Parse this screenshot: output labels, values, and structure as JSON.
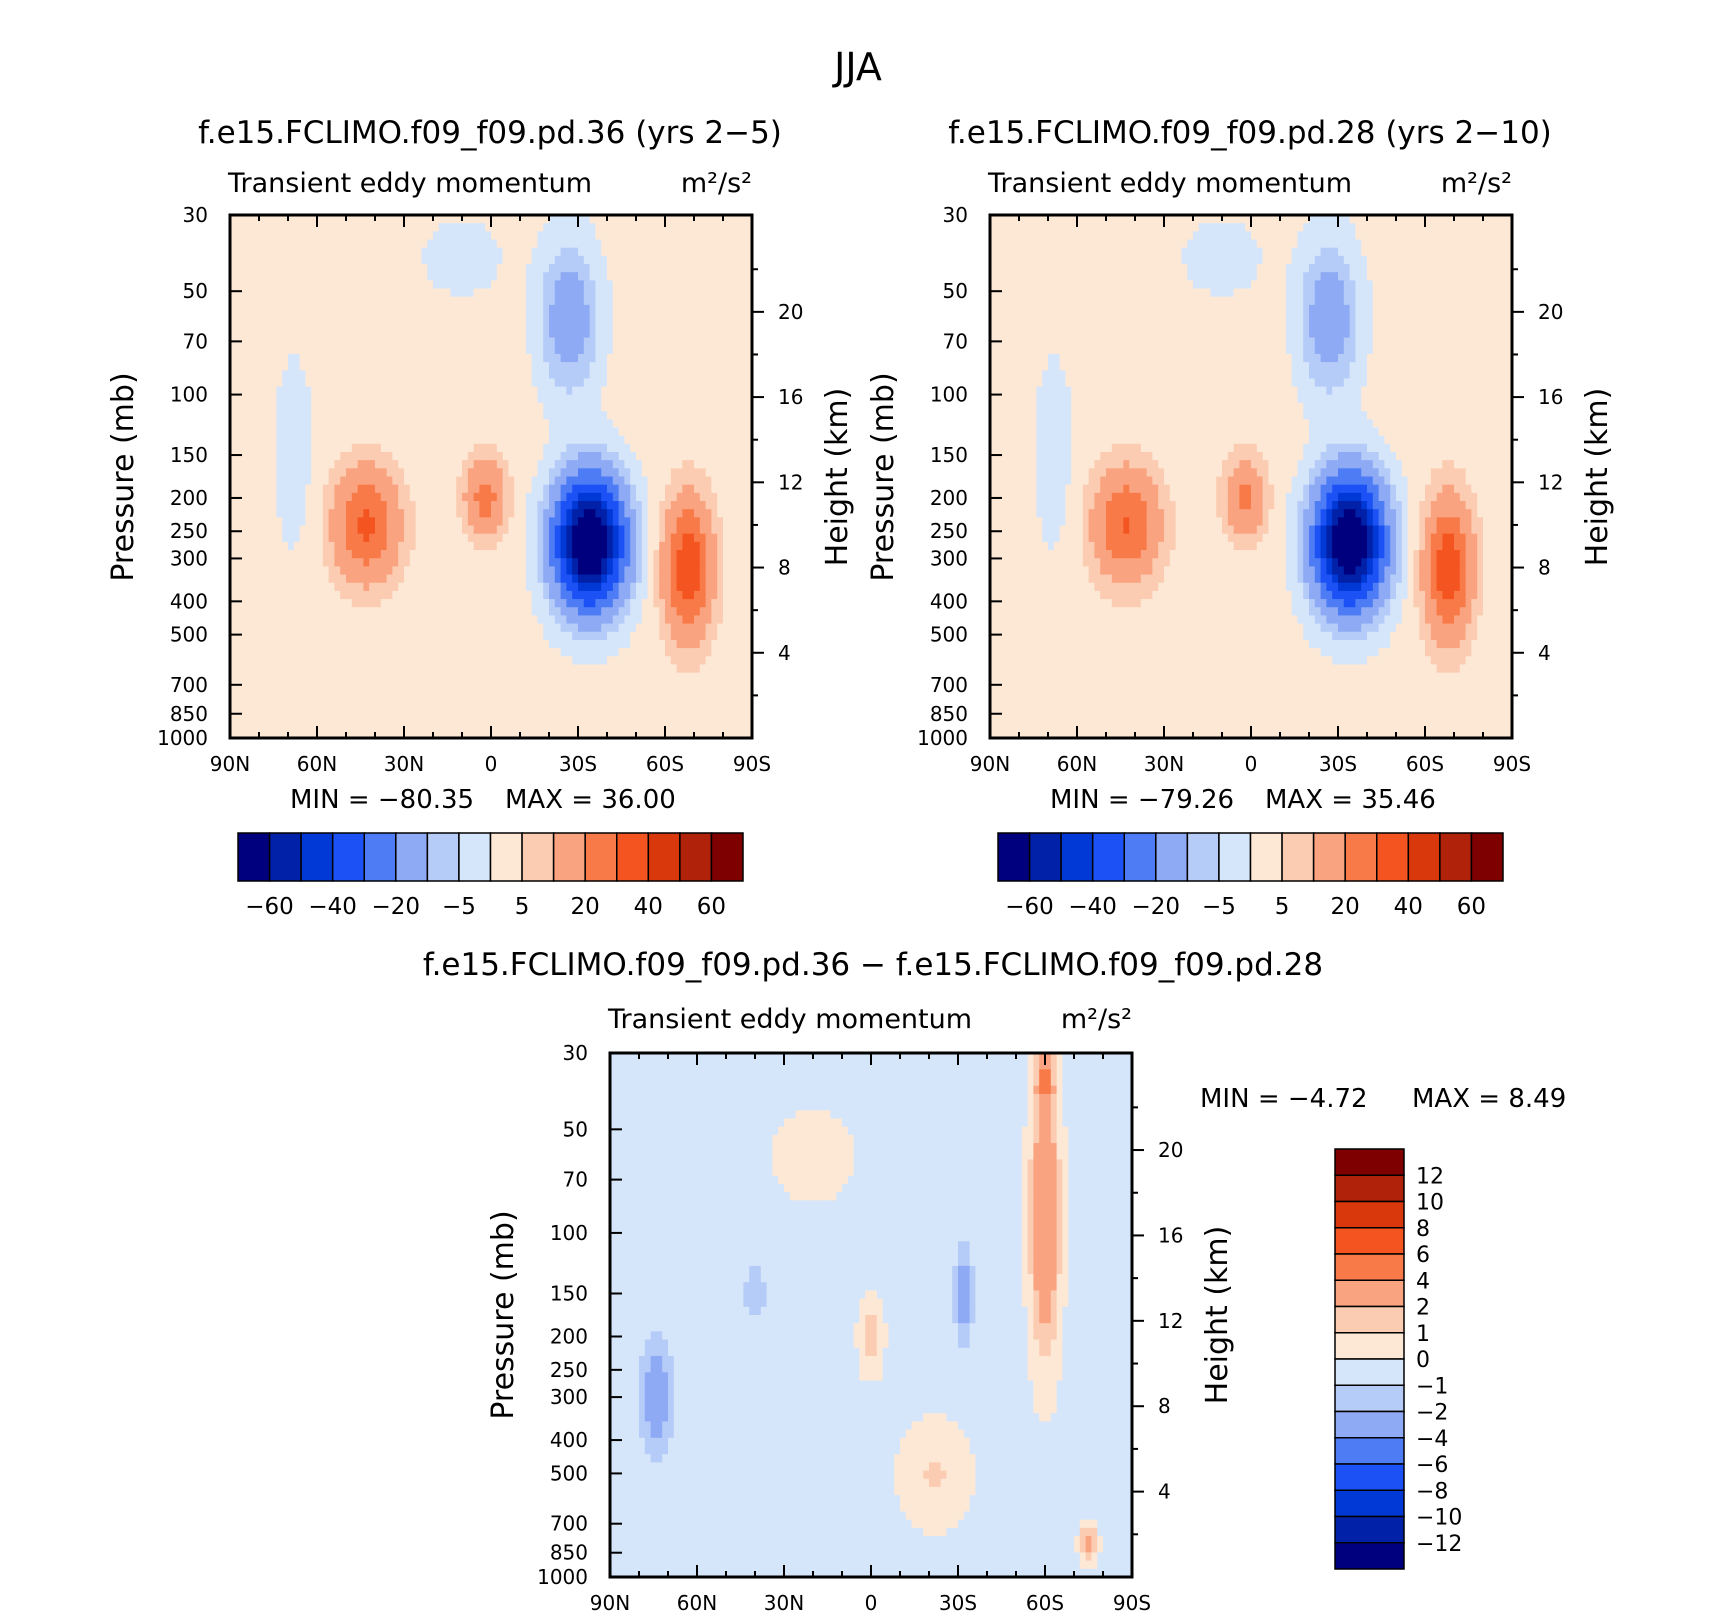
{
  "figure_title": "JJA",
  "palettes": {
    "main": [
      "#00007f",
      "#0021a8",
      "#0039d6",
      "#1c52f5",
      "#4d7cf5",
      "#8eaaf4",
      "#b5cbf8",
      "#d6e6fa",
      "#fde8d6",
      "#fcccb2",
      "#faa380",
      "#f77a48",
      "#f45420",
      "#d9380c",
      "#b0220a",
      "#7f0000"
    ],
    "diff": [
      "#7f0000",
      "#b0220a",
      "#d9380c",
      "#f45420",
      "#f77a48",
      "#faa380",
      "#fcccb2",
      "#fde8d6",
      "#d6e6fa",
      "#b5cbf8",
      "#8eaaf4",
      "#4d7cf5",
      "#1c52f5",
      "#0039d6",
      "#0021a8",
      "#00007f"
    ]
  },
  "chart_data": [
    {
      "id": "panel_a",
      "type": "heatmap",
      "title": "f.e15.FCLIMO.f09_f09.pd.36 (yrs 2−5)",
      "subtitle_left": "Transient eddy momentum",
      "units": "m²/s²",
      "ylabel": "Pressure (mb)",
      "ylabel_right": "Height (km)",
      "x_ticks": [
        {
          "lat": 90,
          "label": "90N"
        },
        {
          "lat": 60,
          "label": "60N"
        },
        {
          "lat": 30,
          "label": "30N"
        },
        {
          "lat": 0,
          "label": "0"
        },
        {
          "lat": -30,
          "label": "30S"
        },
        {
          "lat": -60,
          "label": "60S"
        },
        {
          "lat": -90,
          "label": "90S"
        }
      ],
      "y_ticks": [
        30,
        50,
        70,
        100,
        150,
        200,
        250,
        300,
        400,
        500,
        700,
        850,
        1000
      ],
      "height_ticks": [
        20,
        16,
        12,
        8,
        4
      ],
      "xlim": [
        90,
        -90
      ],
      "ylim_mb": [
        1000,
        30
      ],
      "levels": [
        -60,
        -50,
        -40,
        -30,
        -20,
        -10,
        -5,
        0,
        5,
        10,
        20,
        30,
        40,
        50,
        60
      ],
      "min_label": "MIN = −80.35",
      "max_label": "MAX = 36.00",
      "colorbar_labels": [
        "−60",
        "−40",
        "−20",
        "−5",
        "5",
        "20",
        "40",
        "60"
      ],
      "background_value": 2,
      "features": [
        {
          "lat": 43,
          "p": 240,
          "amp": 30,
          "wlat": 11,
          "wlog": 0.36
        },
        {
          "lat": 2,
          "p": 200,
          "amp": 22,
          "wlat": 7,
          "wlog": 0.26
        },
        {
          "lat": -34,
          "p": 270,
          "amp": -80,
          "wlat": 12,
          "wlog": 0.43
        },
        {
          "lat": -68,
          "p": 320,
          "amp": 36,
          "wlat": 8,
          "wlog": 0.45
        },
        {
          "lat": -27,
          "p": 60,
          "amp": -18,
          "wlat": 10,
          "wlog": 0.5
        },
        {
          "lat": 68,
          "p": 150,
          "amp": -4,
          "wlat": 8,
          "wlog": 0.8
        },
        {
          "lat": 10,
          "p": 40,
          "amp": -4,
          "wlat": 16,
          "wlog": 0.3
        }
      ]
    },
    {
      "id": "panel_b",
      "type": "heatmap",
      "title": "f.e15.FCLIMO.f09_f09.pd.28 (yrs 2−10)",
      "subtitle_left": "Transient eddy momentum",
      "units": "m²/s²",
      "ylabel": "Pressure (mb)",
      "ylabel_right": "Height (km)",
      "x_ticks": [
        {
          "lat": 90,
          "label": "90N"
        },
        {
          "lat": 60,
          "label": "60N"
        },
        {
          "lat": 30,
          "label": "30N"
        },
        {
          "lat": 0,
          "label": "0"
        },
        {
          "lat": -30,
          "label": "30S"
        },
        {
          "lat": -60,
          "label": "60S"
        },
        {
          "lat": -90,
          "label": "90S"
        }
      ],
      "y_ticks": [
        30,
        50,
        70,
        100,
        150,
        200,
        250,
        300,
        400,
        500,
        700,
        850,
        1000
      ],
      "height_ticks": [
        20,
        16,
        12,
        8,
        4
      ],
      "xlim": [
        90,
        -90
      ],
      "ylim_mb": [
        1000,
        30
      ],
      "levels": [
        -60,
        -50,
        -40,
        -30,
        -20,
        -10,
        -5,
        0,
        5,
        10,
        20,
        30,
        40,
        50,
        60
      ],
      "min_label": "MIN = −79.26",
      "max_label": "MAX = 35.46",
      "colorbar_labels": [
        "−60",
        "−40",
        "−20",
        "−5",
        "5",
        "20",
        "40",
        "60"
      ],
      "background_value": 2,
      "features": [
        {
          "lat": 43,
          "p": 240,
          "amp": 29,
          "wlat": 11,
          "wlog": 0.36
        },
        {
          "lat": 2,
          "p": 200,
          "amp": 20,
          "wlat": 7,
          "wlog": 0.26
        },
        {
          "lat": -34,
          "p": 270,
          "amp": -79,
          "wlat": 12,
          "wlog": 0.43
        },
        {
          "lat": -68,
          "p": 320,
          "amp": 35,
          "wlat": 8,
          "wlog": 0.45
        },
        {
          "lat": -27,
          "p": 60,
          "amp": -18,
          "wlat": 10,
          "wlog": 0.5
        },
        {
          "lat": 68,
          "p": 150,
          "amp": -4,
          "wlat": 8,
          "wlog": 0.8
        },
        {
          "lat": 10,
          "p": 40,
          "amp": -4,
          "wlat": 16,
          "wlog": 0.3
        }
      ]
    },
    {
      "id": "panel_c",
      "type": "heatmap",
      "title": "f.e15.FCLIMO.f09_f09.pd.36 − f.e15.FCLIMO.f09_f09.pd.28",
      "subtitle_left": "Transient eddy momentum",
      "units": "m²/s²",
      "ylabel": "Pressure (mb)",
      "ylabel_right": "Height (km)",
      "x_ticks": [
        {
          "lat": 90,
          "label": "90N"
        },
        {
          "lat": 60,
          "label": "60N"
        },
        {
          "lat": 30,
          "label": "30N"
        },
        {
          "lat": 0,
          "label": "0"
        },
        {
          "lat": -30,
          "label": "30S"
        },
        {
          "lat": -60,
          "label": "60S"
        },
        {
          "lat": -90,
          "label": "90S"
        }
      ],
      "y_ticks": [
        30,
        50,
        70,
        100,
        150,
        200,
        250,
        300,
        400,
        500,
        700,
        850,
        1000
      ],
      "height_ticks": [
        20,
        16,
        12,
        8,
        4
      ],
      "xlim": [
        90,
        -90
      ],
      "ylim_mb": [
        1000,
        30
      ],
      "levels": [
        -12,
        -10,
        -8,
        -6,
        -4,
        -2,
        -1,
        0,
        1,
        2,
        4,
        6,
        8,
        10,
        12
      ],
      "min_label": "MIN = −4.72",
      "max_label": "MAX = 8.49",
      "colorbar_labels": [
        "12",
        "10",
        "8",
        "6",
        "4",
        "2",
        "1",
        "0",
        "−1",
        "−2",
        "−4",
        "−6",
        "−8",
        "−10",
        "−12"
      ],
      "background_value": -0.4,
      "features": [
        {
          "lat": -60,
          "p": 90,
          "amp": 4.5,
          "wlat": 5,
          "wlog": 0.9
        },
        {
          "lat": -60,
          "p": 35,
          "amp": 3.5,
          "wlat": 3,
          "wlog": 0.25
        },
        {
          "lat": -75,
          "p": 800,
          "amp": 3.5,
          "wlat": 3,
          "wlog": 0.12
        },
        {
          "lat": 74,
          "p": 300,
          "amp": -3,
          "wlat": 5,
          "wlog": 0.35
        },
        {
          "lat": -32,
          "p": 150,
          "amp": -2.5,
          "wlat": 3,
          "wlog": 0.3
        },
        {
          "lat": 0,
          "p": 200,
          "amp": 2.2,
          "wlat": 4,
          "wlog": 0.25
        },
        {
          "lat": 20,
          "p": 60,
          "amp": 1.2,
          "wlat": 14,
          "wlog": 0.3
        },
        {
          "lat": -22,
          "p": 500,
          "amp": 1.5,
          "wlat": 12,
          "wlog": 0.35
        },
        {
          "lat": 40,
          "p": 150,
          "amp": -1.3,
          "wlat": 4,
          "wlog": 0.2
        }
      ]
    }
  ]
}
